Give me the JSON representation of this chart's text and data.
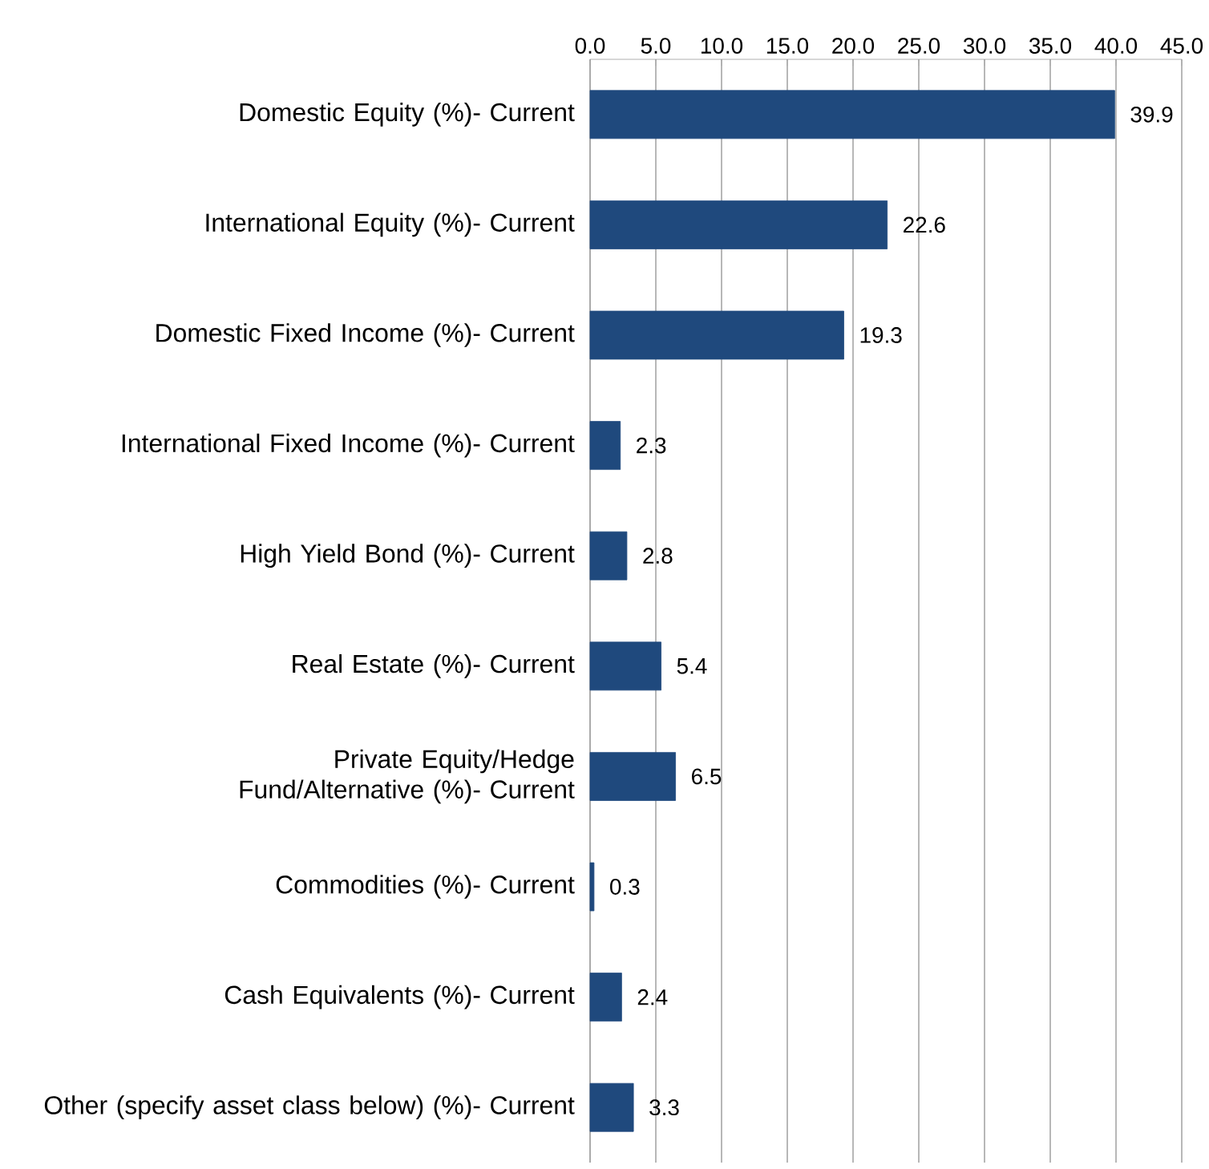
{
  "chart_data": {
    "type": "bar",
    "orientation": "horizontal",
    "categories": [
      "Domestic Equity (%)- Current",
      "International Equity (%)- Current",
      "Domestic Fixed Income (%)- Current",
      "International Fixed Income (%)- Current",
      "High Yield Bond (%)- Current",
      "Real Estate (%)- Current",
      "Private Equity/Hedge Fund/Alternative (%)- Current",
      "Commodities (%)- Current",
      "Cash Equivalents (%)- Current",
      "Other (specify asset class below) (%)- Current"
    ],
    "values": [
      39.9,
      22.6,
      19.3,
      2.3,
      2.8,
      5.4,
      6.5,
      0.3,
      2.4,
      3.3
    ],
    "color": "#1f497d",
    "xlim": [
      0,
      45
    ],
    "xticks": [
      {
        "value": 0,
        "label": "0.0"
      },
      {
        "value": 5,
        "label": "5.0"
      },
      {
        "value": 10,
        "label": "10.0"
      },
      {
        "value": 15,
        "label": "15.0"
      },
      {
        "value": 20,
        "label": "20.0"
      },
      {
        "value": 25,
        "label": "25.0"
      },
      {
        "value": 30,
        "label": "30.0"
      },
      {
        "value": 35,
        "label": "35.0"
      },
      {
        "value": 40,
        "label": "40.0"
      },
      {
        "value": 45,
        "label": "45.0"
      }
    ],
    "grid": "x",
    "data_labels": true
  }
}
